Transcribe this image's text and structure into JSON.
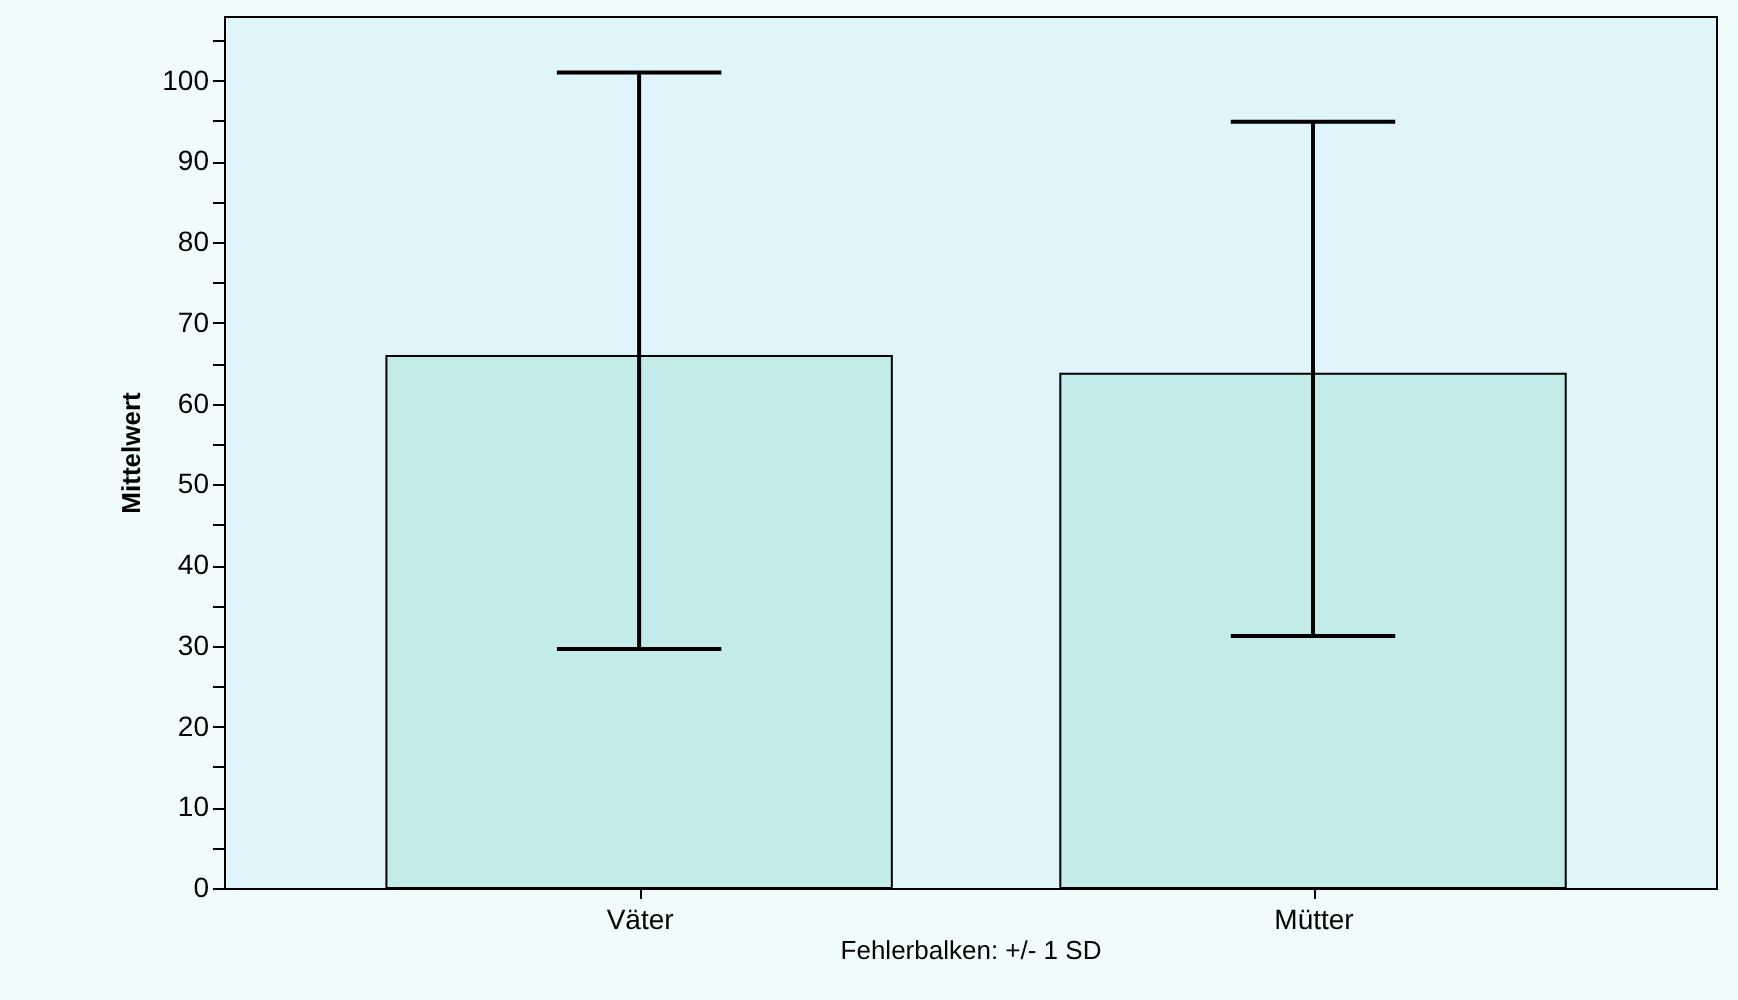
{
  "chart_data": {
    "type": "bar",
    "ylabel": "Mittelwert",
    "categories": [
      "Väter",
      "Mütter"
    ],
    "values": [
      65.9,
      63.7
    ],
    "errors": [
      [
        29.6,
        101.0
      ],
      [
        31.2,
        94.9
      ]
    ],
    "color": "#c2ebea",
    "ylim": [
      0,
      108
    ],
    "yticks": [
      0,
      {
        "value": 5,
        "label": null
      },
      10,
      {
        "value": 15,
        "label": null
      },
      20,
      {
        "value": 25,
        "label": null
      },
      30,
      {
        "value": 35,
        "label": null
      },
      40,
      {
        "value": 45,
        "label": null
      },
      50,
      {
        "value": 55,
        "label": null
      },
      60,
      {
        "value": 65,
        "label": null
      },
      70,
      {
        "value": 75,
        "label": null
      },
      80,
      {
        "value": 85,
        "label": null
      },
      90,
      {
        "value": 95,
        "label": null
      },
      100,
      {
        "value": 105,
        "label": null
      }
    ],
    "grid": false,
    "annotations": [
      "Fehlerbalken: +/- 1 SD"
    ]
  }
}
